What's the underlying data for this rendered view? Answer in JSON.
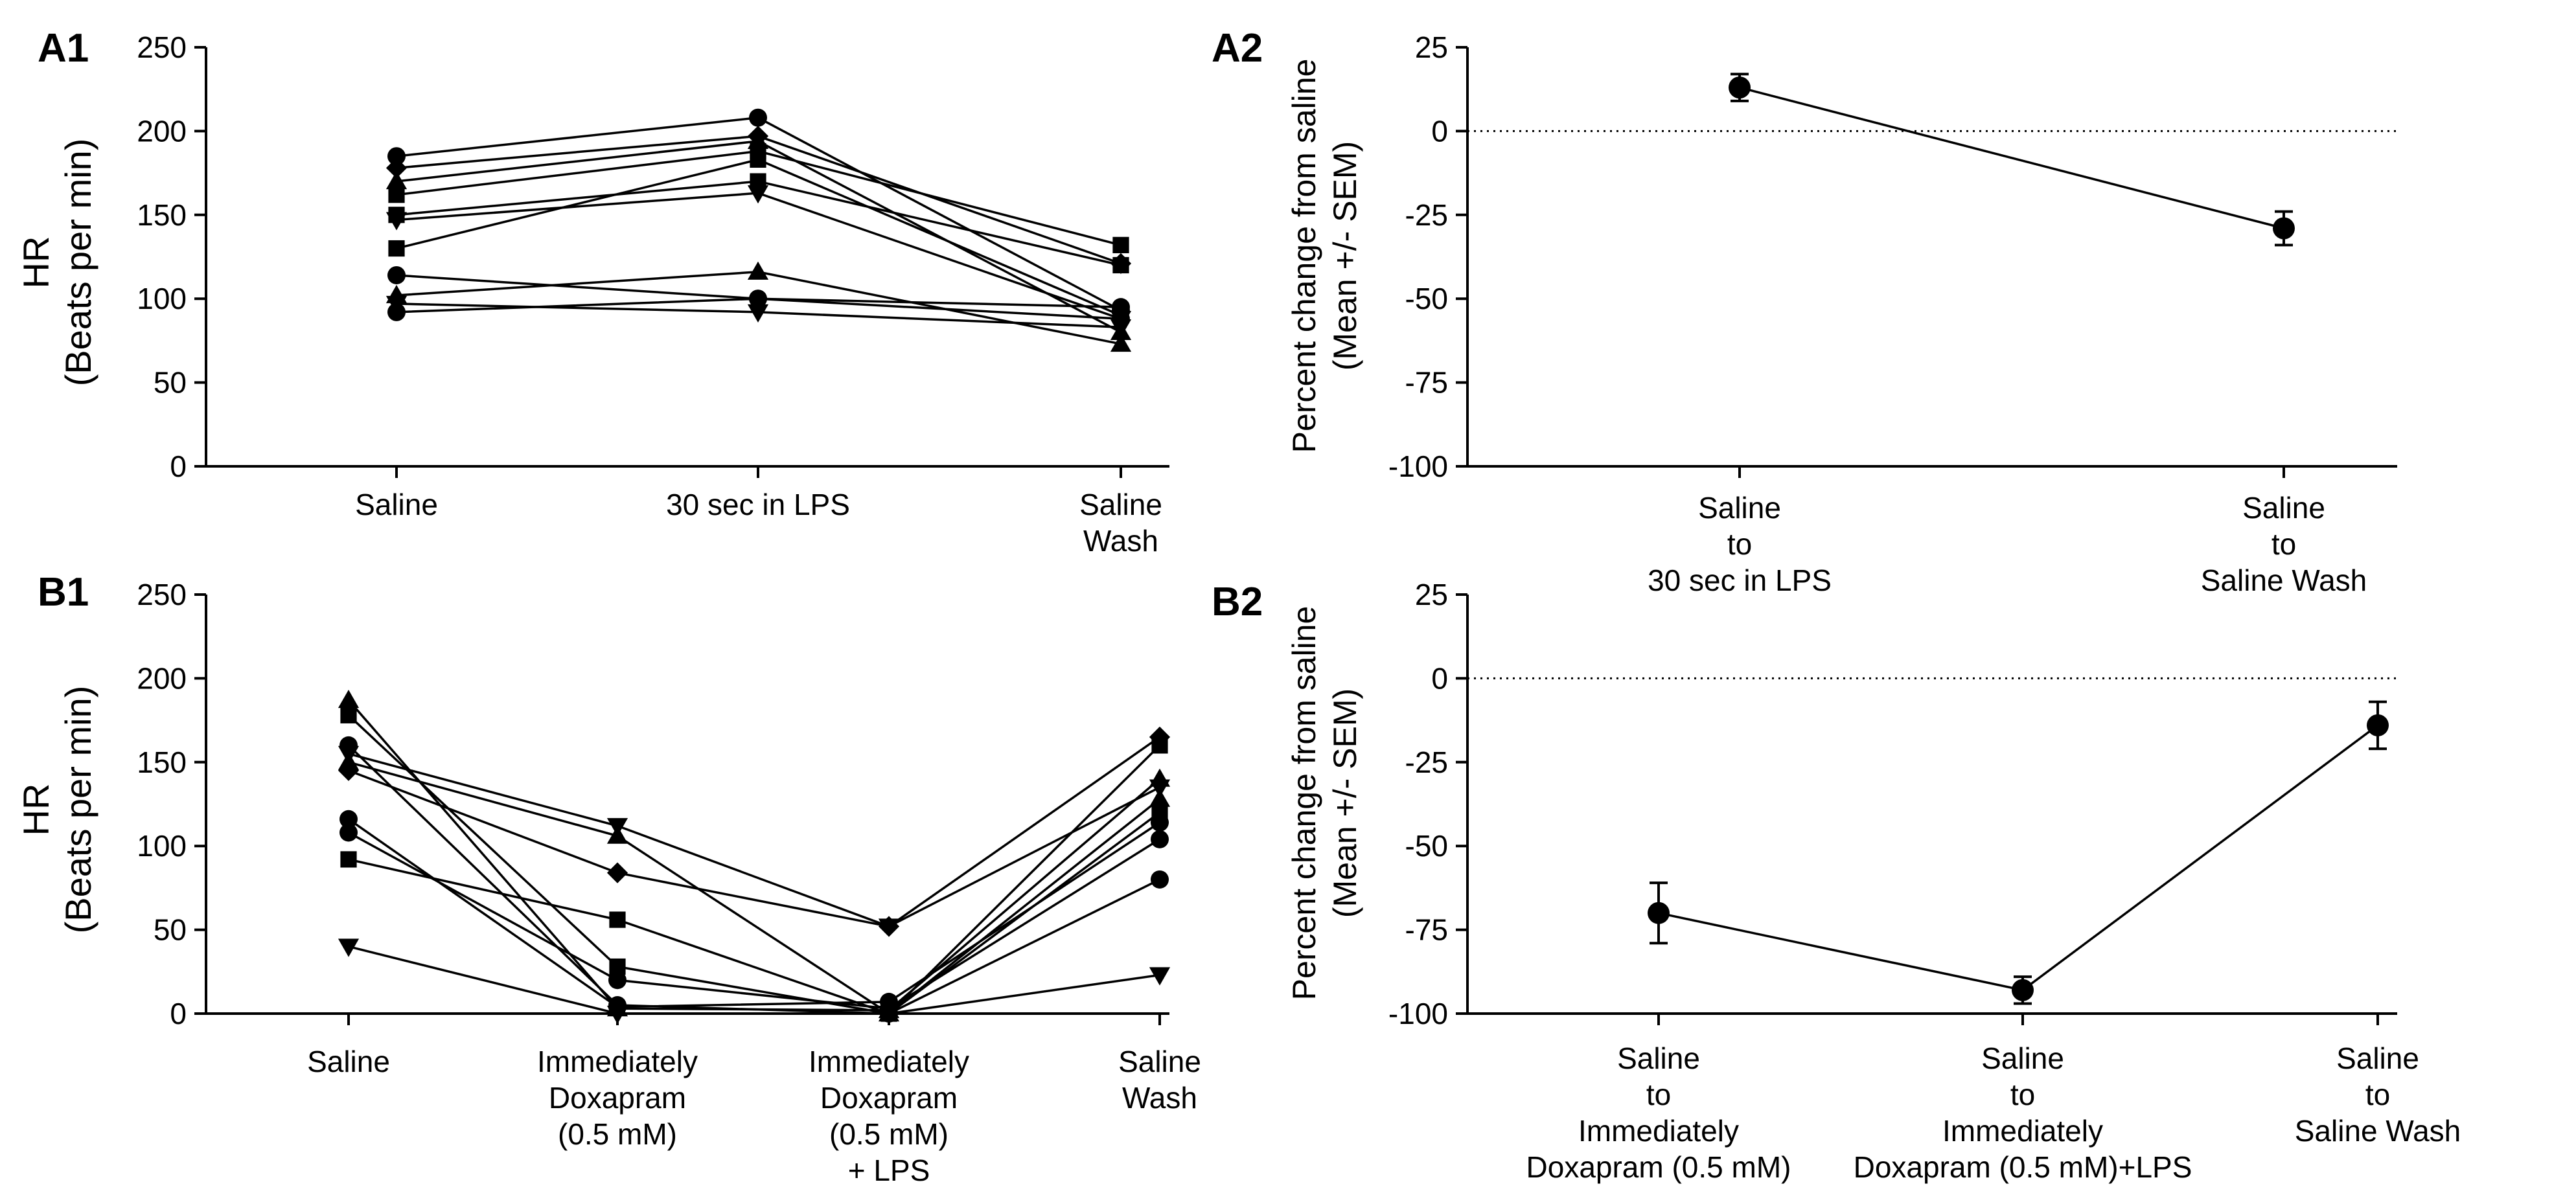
{
  "figure": {
    "panels": {
      "A1": "A1",
      "A2": "A2",
      "B1": "B1",
      "B2": "B2"
    },
    "hr_ylabel_line1": "HR",
    "hr_ylabel_line2": "(Beats per min)",
    "pct_ylabel_line1": "Percent change from saline",
    "pct_ylabel_line2": "(Mean +/- SEM)"
  },
  "chart_data": [
    {
      "id": "A1",
      "type": "line",
      "title": "",
      "xlabel": "",
      "ylabel": "HR (Beats per min)",
      "categories": [
        [
          "Saline"
        ],
        [
          "30 sec in LPS"
        ],
        [
          "Saline",
          "Wash"
        ]
      ],
      "ylim": [
        0,
        250
      ],
      "yticks": [
        0,
        50,
        100,
        150,
        200,
        250
      ],
      "series": [
        {
          "name": "A1 prep 1",
          "marker": "circle",
          "values": [
            185,
            208,
            93
          ]
        },
        {
          "name": "A1 prep 2",
          "marker": "diamond",
          "values": [
            178,
            197,
            121
          ]
        },
        {
          "name": "A1 prep 3",
          "marker": "triangle-up",
          "values": [
            170,
            194,
            80
          ]
        },
        {
          "name": "A1 prep 4",
          "marker": "square",
          "values": [
            162,
            188,
            132
          ]
        },
        {
          "name": "A1 prep 5",
          "marker": "square",
          "values": [
            150,
            170,
            120
          ]
        },
        {
          "name": "A1 prep 6",
          "marker": "triangle-down",
          "values": [
            147,
            163,
            88
          ]
        },
        {
          "name": "A1 prep 7",
          "marker": "square",
          "values": [
            130,
            183,
            90
          ]
        },
        {
          "name": "A1 prep 8",
          "marker": "triangle-up",
          "values": [
            102,
            116,
            73
          ]
        },
        {
          "name": "A1 prep 9",
          "marker": "circle",
          "values": [
            114,
            100,
            88
          ]
        },
        {
          "name": "A1 prep 10",
          "marker": "triangle-down",
          "values": [
            97,
            92,
            83
          ]
        },
        {
          "name": "A1 prep 11",
          "marker": "circle",
          "values": [
            92,
            100,
            95
          ]
        }
      ]
    },
    {
      "id": "A2",
      "type": "line",
      "title": "",
      "xlabel": "",
      "ylabel": "Percent change from saline (Mean +/- SEM)",
      "categories": [
        [
          "Saline",
          "to",
          "30 sec in LPS"
        ],
        [
          "Saline",
          "to",
          "Saline Wash"
        ]
      ],
      "ylim": [
        -100,
        25
      ],
      "yticks": [
        -100,
        -75,
        -50,
        -25,
        0,
        25
      ],
      "reference_line": 0,
      "series": [
        {
          "name": "Mean",
          "marker": "circle",
          "values": [
            13,
            -29
          ],
          "sem": [
            4,
            5
          ]
        }
      ]
    },
    {
      "id": "B1",
      "type": "line",
      "title": "",
      "xlabel": "",
      "ylabel": "HR (Beats per min)",
      "categories": [
        [
          "Saline"
        ],
        [
          "Immediately",
          "Doxapram",
          "(0.5 mM)"
        ],
        [
          "Immediately",
          "Doxapram",
          "(0.5 mM)",
          "+ LPS"
        ],
        [
          "Saline",
          "Wash"
        ]
      ],
      "ylim": [
        0,
        250
      ],
      "yticks": [
        0,
        50,
        100,
        150,
        200,
        250
      ],
      "series": [
        {
          "name": "B1 prep 1",
          "marker": "triangle-up",
          "values": [
            187,
            3,
            2,
            140
          ]
        },
        {
          "name": "B1 prep 2",
          "marker": "square",
          "values": [
            178,
            28,
            0,
            160
          ]
        },
        {
          "name": "B1 prep 3",
          "marker": "triangle-down",
          "values": [
            155,
            112,
            52,
            135
          ]
        },
        {
          "name": "B1 prep 4",
          "marker": "diamond",
          "values": [
            145,
            84,
            52,
            165
          ]
        },
        {
          "name": "B1 prep 5",
          "marker": "triangle-up",
          "values": [
            150,
            106,
            0,
            128
          ]
        },
        {
          "name": "B1 prep 6",
          "marker": "circle",
          "values": [
            116,
            4,
            7,
            114
          ]
        },
        {
          "name": "B1 prep 7",
          "marker": "circle",
          "values": [
            108,
            20,
            3,
            104
          ]
        },
        {
          "name": "B1 prep 8",
          "marker": "square",
          "values": [
            92,
            56,
            0,
            120
          ]
        },
        {
          "name": "B1 prep 9",
          "marker": "triangle-down",
          "values": [
            40,
            0,
            0,
            23
          ]
        },
        {
          "name": "B1 prep 10",
          "marker": "circle",
          "values": [
            160,
            5,
            0,
            80
          ]
        }
      ]
    },
    {
      "id": "B2",
      "type": "line",
      "title": "",
      "xlabel": "",
      "ylabel": "Percent change from saline (Mean +/- SEM)",
      "categories": [
        [
          "Saline",
          "to",
          "Immediately",
          "Doxapram (0.5 mM)"
        ],
        [
          "Saline",
          "to",
          "Immediately",
          "Doxapram (0.5 mM)+LPS"
        ],
        [
          "Saline",
          "to",
          "Saline Wash"
        ]
      ],
      "ylim": [
        -100,
        25
      ],
      "yticks": [
        -100,
        -75,
        -50,
        -25,
        0,
        25
      ],
      "reference_line": 0,
      "series": [
        {
          "name": "Mean",
          "marker": "circle",
          "values": [
            -70,
            -93,
            -14
          ],
          "sem": [
            9,
            4,
            7
          ]
        }
      ]
    }
  ]
}
